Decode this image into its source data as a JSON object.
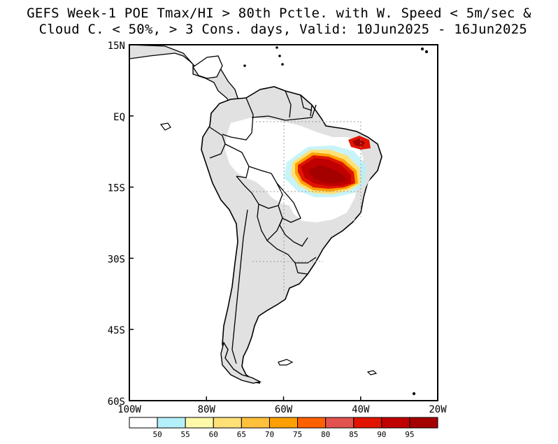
{
  "title_lines": [
    "GEFS Week-1 POE Tmax/HI > 80th Pctle. with W. Speed < 5m/sec &",
    " Cloud C. < 50%, > 3 Cons. days, Valid: 10Jun2025 - 16Jun2025"
  ],
  "map": {
    "region": "South America",
    "lat_range": [
      -60,
      15
    ],
    "lon_range": [
      -100,
      -20
    ],
    "lat_ticks": [
      {
        "value": 15,
        "label": "15N"
      },
      {
        "value": 0,
        "label": "EQ"
      },
      {
        "value": -15,
        "label": "15S"
      },
      {
        "value": -30,
        "label": "30S"
      },
      {
        "value": -45,
        "label": "45S"
      },
      {
        "value": -60,
        "label": "60S"
      }
    ],
    "lon_ticks": [
      {
        "value": -100,
        "label": "100W"
      },
      {
        "value": -80,
        "label": "80W"
      },
      {
        "value": -60,
        "label": "60W"
      },
      {
        "value": -40,
        "label": "40W"
      },
      {
        "value": -20,
        "label": "20W"
      }
    ],
    "grid_lines": {
      "lats": [
        0,
        -15,
        -30
      ],
      "lons": [
        -60,
        -40
      ]
    },
    "colors": {
      "land_fill": "#e1e1e1",
      "ocean": "#ffffff",
      "coastline": "#000000"
    }
  },
  "colorbar": {
    "labels": [
      "50",
      "55",
      "60",
      "65",
      "70",
      "75",
      "80",
      "85",
      "90",
      "95"
    ],
    "colors": [
      "#ffffff",
      "#b4f0fa",
      "#fffaaa",
      "#ffe178",
      "#ffc03c",
      "#ffa000",
      "#ff6000",
      "#e1524e",
      "#e11400",
      "#c00000",
      "#a50000"
    ]
  }
}
